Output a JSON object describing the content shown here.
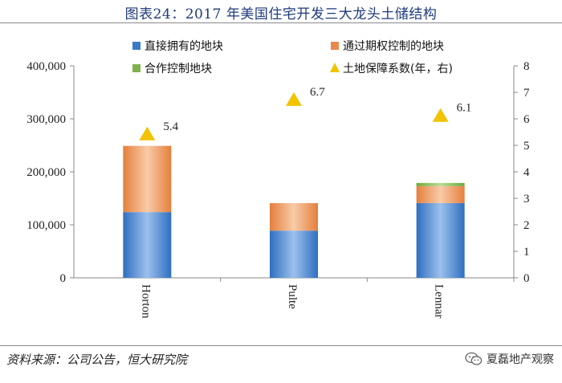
{
  "title": "图表24：2017 年美国住宅开发三大龙头土储结构",
  "source": "资料来源：公司公告，恒大研究院",
  "brand": "夏磊地产观察",
  "brand_icon": "wechat-icon",
  "colors": {
    "direct": "#3a78c8",
    "direct_light": "#8fb4e6",
    "optioned": "#e88a4e",
    "optioned_light": "#f6c49f",
    "jv": "#7fb24c",
    "ratio_marker": "#f2c300",
    "title": "#1f3a7a"
  },
  "chart_data": {
    "type": "bar",
    "stacked": true,
    "categories": [
      "Horton",
      "Pulte",
      "Lennar"
    ],
    "series": [
      {
        "name": "直接拥有的地块",
        "values": [
          124000,
          89000,
          141000
        ],
        "color": "#3a78c8"
      },
      {
        "name": "通过期权控制的地块",
        "values": [
          125000,
          52000,
          32000
        ],
        "color": "#e88a4e"
      },
      {
        "name": "合作控制地块",
        "values": [
          0,
          0,
          6000
        ],
        "color": "#7fb24c"
      }
    ],
    "secondary_series": {
      "name": "土地保障系数(年，右)",
      "type": "scatter",
      "marker": "triangle",
      "axis": "right",
      "values": [
        5.4,
        6.7,
        6.1
      ],
      "labels": [
        "5.4",
        "6.7",
        "6.1"
      ],
      "color": "#f2c300"
    },
    "y_left": {
      "min": 0,
      "max": 400000,
      "ticks": [
        "0",
        "100,000",
        "200,000",
        "300,000",
        "400,000"
      ],
      "tick_values": [
        0,
        100000,
        200000,
        300000,
        400000
      ]
    },
    "y_right": {
      "min": 0,
      "max": 8,
      "ticks": [
        "0",
        "1",
        "2",
        "3",
        "4",
        "5",
        "6",
        "7",
        "8"
      ],
      "tick_values": [
        0,
        1,
        2,
        3,
        4,
        5,
        6,
        7,
        8
      ]
    },
    "legend_position": "top",
    "grid": false
  }
}
